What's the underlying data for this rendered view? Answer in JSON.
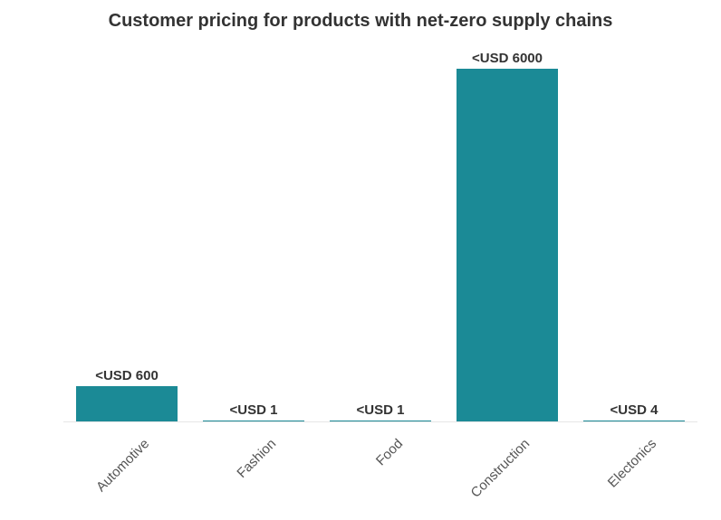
{
  "chart_data": {
    "type": "bar",
    "title": "Customer pricing for products with net-zero supply chains",
    "xlabel": "",
    "ylabel": "",
    "categories": [
      "Automotive",
      "Fashion",
      "Food",
      "Construction",
      "Electonics"
    ],
    "values": [
      600,
      1,
      1,
      6000,
      4
    ],
    "data_labels": [
      "<USD 600",
      "<USD 1",
      "<USD 1",
      "<USD 6000",
      "<USD 4"
    ],
    "ylim": [
      0,
      6000
    ],
    "grid": false,
    "legend": "none",
    "bar_color": "#1b8a96",
    "baseline_color": "#e6e6e6"
  }
}
